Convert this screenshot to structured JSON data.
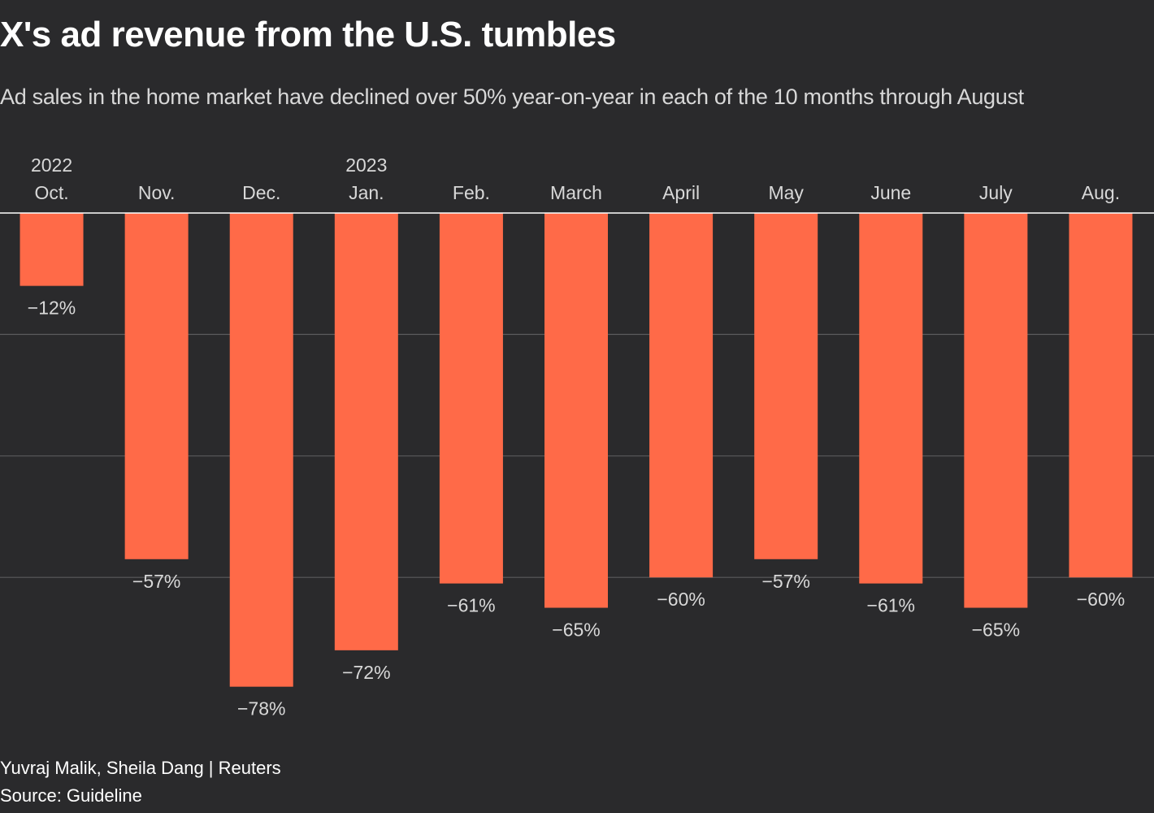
{
  "title": "X's ad revenue from the U.S. tumbles",
  "subtitle": "Ad sales in the home market have declined over 50% year-on-year in each of the 10 months through August",
  "credit": "Yuvraj Malik, Sheila Dang | Reuters",
  "source": "Source: Guideline",
  "colors": {
    "background": "#2a2a2c",
    "bar": "#ff6a48",
    "gridline": "#5a5a5c",
    "baseline": "#ffffff",
    "text": "#d8d8d8"
  },
  "chart_data": {
    "type": "bar",
    "orientation": "vertical",
    "categories": [
      "Oct.",
      "Nov.",
      "Dec.",
      "Jan.",
      "Feb.",
      "March",
      "April",
      "May",
      "June",
      "July",
      "Aug."
    ],
    "year_labels": [
      "2022",
      "",
      "",
      "2023",
      "",
      "",
      "",
      "",
      "",
      "",
      ""
    ],
    "values": [
      -12,
      -57,
      -78,
      -72,
      -61,
      -65,
      -60,
      -57,
      -61,
      -65,
      -60
    ],
    "value_labels": [
      "−12%",
      "−57%",
      "−78%",
      "−72%",
      "−61%",
      "−65%",
      "−60%",
      "−57%",
      "−61%",
      "−65%",
      "−60%"
    ],
    "unit": "%",
    "ylim": [
      -80,
      0
    ],
    "gridlines": [
      -20,
      -40,
      -60
    ],
    "grid": true,
    "x_axis_position": "top",
    "title": "X's ad revenue from the U.S. tumbles",
    "xlabel": "",
    "ylabel": ""
  }
}
